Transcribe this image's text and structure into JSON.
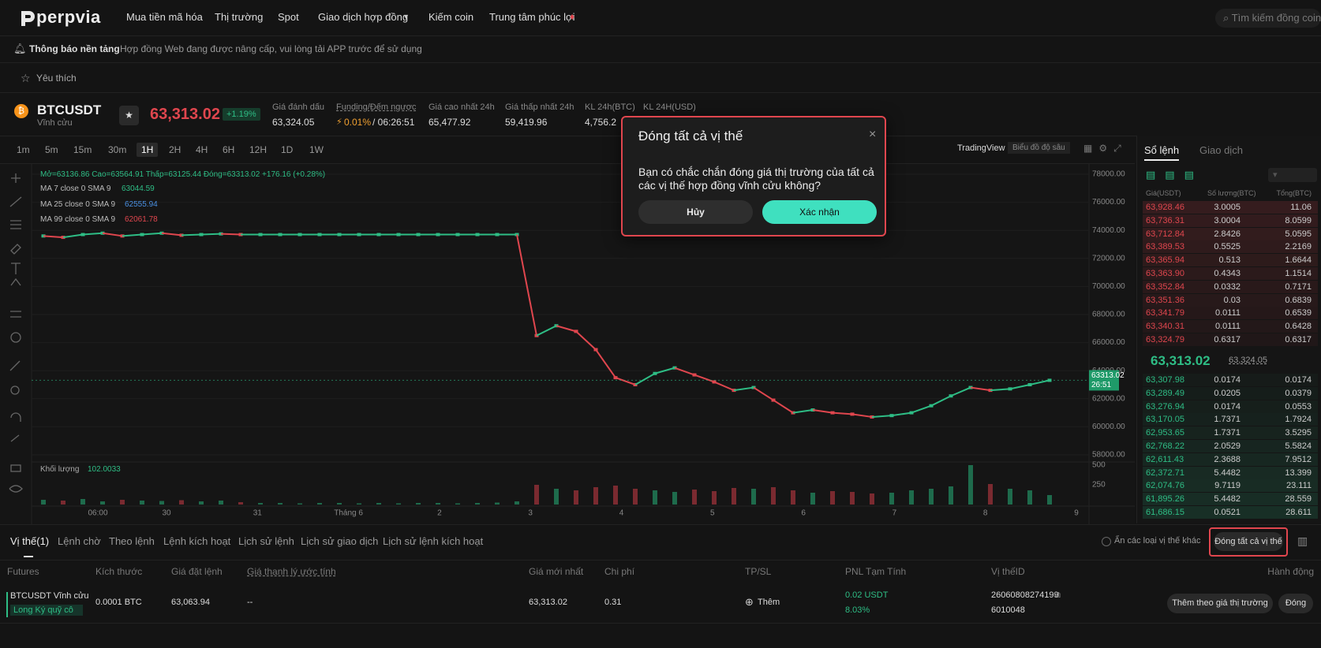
{
  "nav": {
    "logo": "perpvia",
    "items": [
      "Mua tiền mã hóa",
      "Thị trường",
      "Spot",
      "Giao dịch hợp đồng",
      "Kiếm coin",
      "Trung tâm phúc lợi"
    ],
    "search": "Tìm kiếm đồng coin"
  },
  "notice": {
    "label": "Thông báo nền tảng",
    "text": "Hợp đồng Web đang được nâng cấp, vui lòng tải APP trước để sử dụng"
  },
  "favorites": "Yêu thích",
  "ticker": {
    "symbol": "BTCUSDT",
    "kind": "Vĩnh cửu",
    "price": "63,313.02",
    "change": "+1.19%",
    "stats": [
      {
        "label": "Giá đánh dấu",
        "value": "63,324.05"
      },
      {
        "label": "Funding/Đếm ngược",
        "value": "0.01%",
        "extra": "/ 06:26:51"
      },
      {
        "label": "Giá cao nhất 24h",
        "value": "65,477.92"
      },
      {
        "label": "Giá thấp nhất 24h",
        "value": "59,419.96"
      },
      {
        "label": "KL 24h(BTC)",
        "value": "4,756.2"
      },
      {
        "label": "KL 24H(USD)"
      }
    ]
  },
  "timeframes": {
    "items": [
      "1m",
      "5m",
      "15m",
      "30m",
      "1H",
      "2H",
      "4H",
      "6H",
      "12H",
      "1D",
      "1W"
    ],
    "active": "1H"
  },
  "chart_tabs": [
    "TradingView",
    "Biểu đồ độ sâu"
  ],
  "chart": {
    "legend": "Mở=63136.86  Cao=63564.91  Thấp=63125.44  Đóng=63313.02  +176.16 (+0.28%)",
    "ma": [
      {
        "label": "MA 7 close 0 SMA 9",
        "value": "63044.59",
        "color": "#2ebd85"
      },
      {
        "label": "MA 25 close 0 SMA 9",
        "value": "62555.94",
        "color": "#4a90e2"
      },
      {
        "label": "MA 99 close 0 SMA 9",
        "value": "62061.78",
        "color": "#e0464e"
      }
    ],
    "volume_label": "Khối lượng",
    "volume_value": "102.0033",
    "price_ticks": [
      {
        "value": 78000,
        "label": "78000.00"
      },
      {
        "value": 76000,
        "label": "76000.00"
      },
      {
        "value": 74000,
        "label": "74000.00"
      },
      {
        "value": 72000,
        "label": "72000.00"
      },
      {
        "value": 70000,
        "label": "70000.00"
      },
      {
        "value": 68000,
        "label": "68000.00"
      },
      {
        "value": 66000,
        "label": "66000.00"
      },
      {
        "value": 64000,
        "label": "64000.00"
      },
      {
        "value": 62000,
        "label": "62000.00"
      },
      {
        "value": 60000,
        "label": "60000.00"
      },
      {
        "value": 58000,
        "label": "58000.00"
      }
    ],
    "volume_ticks": [
      500,
      250
    ],
    "time_labels": [
      "06:00",
      "30",
      "31",
      "Tháng 6",
      "2",
      "3",
      "4",
      "5",
      "6",
      "7",
      "8",
      "9"
    ],
    "last_price_tag": [
      "63313.02",
      "26:51"
    ],
    "closes": [
      73600,
      73500,
      73700,
      73800,
      73600,
      73700,
      73800,
      73650,
      73700,
      73750,
      73700,
      73700,
      73700,
      73700,
      73700,
      73700,
      73700,
      73700,
      73700,
      73700,
      73700,
      73700,
      73700,
      73700,
      73700,
      66500,
      67200,
      66800,
      65500,
      63500,
      63000,
      63800,
      64200,
      63700,
      63200,
      62600,
      62800,
      61900,
      61000,
      61200,
      61000,
      60900,
      60700,
      60800,
      61000,
      61500,
      62200,
      62800,
      62600,
      62700,
      63000,
      63313.02
    ],
    "volumes": [
      60,
      50,
      70,
      40,
      60,
      50,
      45,
      55,
      40,
      50,
      30,
      20,
      20,
      15,
      20,
      20,
      15,
      20,
      15,
      20,
      20,
      15,
      20,
      25,
      40,
      250,
      200,
      180,
      220,
      240,
      200,
      180,
      160,
      190,
      170,
      210,
      200,
      220,
      180,
      150,
      170,
      160,
      140,
      150,
      180,
      200,
      230,
      500,
      260,
      200,
      180,
      120
    ]
  },
  "orderbook": {
    "tabs": [
      "Sổ lệnh",
      "Giao dịch"
    ],
    "headers": [
      "Giá(USDT)",
      "Số lượng(BTC)",
      "Tổng(BTC)"
    ],
    "asks": [
      [
        "63,928.46",
        "3.0005",
        "11.06"
      ],
      [
        "63,736.31",
        "3.0004",
        "8.0599"
      ],
      [
        "63,712.84",
        "2.8426",
        "5.0595"
      ],
      [
        "63,389.53",
        "0.5525",
        "2.2169"
      ],
      [
        "63,365.94",
        "0.513",
        "1.6644"
      ],
      [
        "63,363.90",
        "0.4343",
        "1.1514"
      ],
      [
        "63,352.84",
        "0.0332",
        "0.7171"
      ],
      [
        "63,351.36",
        "0.03",
        "0.6839"
      ],
      [
        "63,341.79",
        "0.0111",
        "0.6539"
      ],
      [
        "63,340.31",
        "0.0111",
        "0.6428"
      ],
      [
        "63,324.79",
        "0.6317",
        "0.6317"
      ]
    ],
    "mid_price": "63,313.02",
    "mark_price": "63,324.05",
    "bids": [
      [
        "63,307.98",
        "0.0174",
        "0.0174"
      ],
      [
        "63,289.49",
        "0.0205",
        "0.0379"
      ],
      [
        "63,276.94",
        "0.0174",
        "0.0553"
      ],
      [
        "63,170.05",
        "1.7371",
        "1.7924"
      ],
      [
        "62,953.65",
        "1.7371",
        "3.5295"
      ],
      [
        "62,768.22",
        "2.0529",
        "5.5824"
      ],
      [
        "62,611.43",
        "2.3688",
        "7.9512"
      ],
      [
        "62,372.71",
        "5.4482",
        "13.399"
      ],
      [
        "62,074.76",
        "9.7119",
        "23.111"
      ],
      [
        "61,895.26",
        "5.4482",
        "28.559"
      ],
      [
        "61,686.15",
        "0.0521",
        "28.611"
      ]
    ]
  },
  "positions": {
    "tabs": [
      "Vị thế(1)",
      "Lệnh chờ",
      "Theo lệnh",
      "Lệnh kích hoạt",
      "Lịch sử lệnh",
      "Lịch sử giao dịch",
      "Lịch sử lệnh kích hoạt"
    ],
    "hide_others": "Ẩn các loại vị thế khác",
    "close_all": "Đóng tất cả vị thế",
    "headers": [
      "Futures",
      "Kích thước",
      "Giá đặt lệnh",
      "Giá thanh lý ước tính",
      "Giá mới nhất",
      "Chi phí",
      "TP/SL",
      "PNL Tạm Tính",
      "Vị thếID",
      "Hành động"
    ],
    "row": {
      "symbol": "BTCUSDT Vĩnh cửu",
      "side": "Long Ký quỹ cô",
      "size": "0.0001 BTC",
      "entry": "63,063.94",
      "liq": "--",
      "last": "63,313.02",
      "cost": "0.31",
      "tpsl": "Thêm",
      "pnl": "0.02 USDT",
      "pnl_pct": "8.03%",
      "id": "26060808274199",
      "id2": "6010048",
      "market_add": "Thêm theo giá thị trường",
      "close": "Đóng"
    }
  },
  "modal": {
    "title": "Đóng tất cả vị thế",
    "message": "Bạn có chắc chắn đóng giá thị trường của tất cả các vị thế hợp đồng vĩnh cửu không?",
    "cancel": "Hủy",
    "confirm": "Xác nhận"
  }
}
